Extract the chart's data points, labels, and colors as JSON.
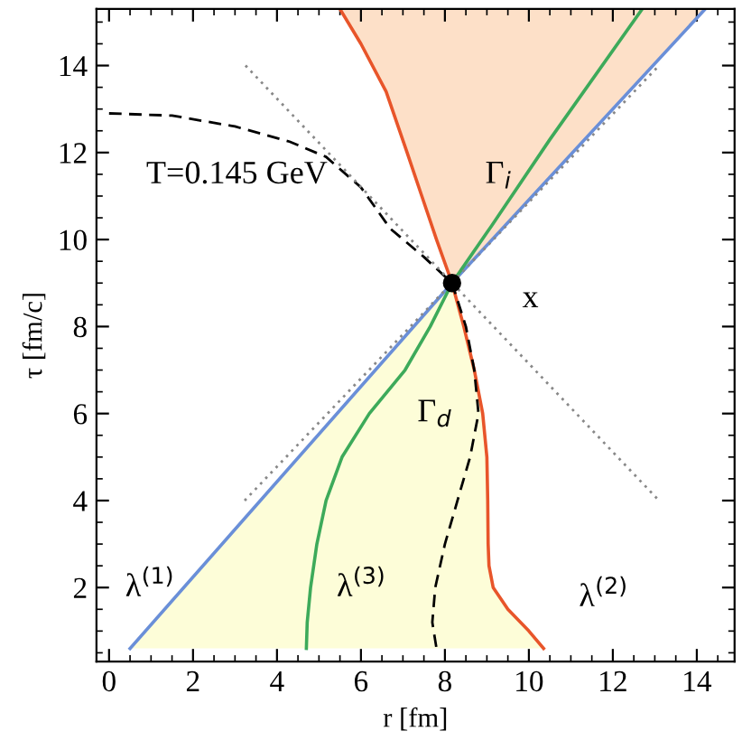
{
  "chart_data": {
    "type": "line",
    "xlabel": "r [fm]",
    "ylabel": "τ [fm/c]",
    "xlim": [
      -0.3,
      14.9
    ],
    "ylim": [
      0.3,
      15.3
    ],
    "xticks": [
      0,
      2,
      4,
      6,
      8,
      10,
      12,
      14
    ],
    "yticks": [
      2,
      4,
      6,
      8,
      10,
      12,
      14
    ],
    "grid": false,
    "legend": false,
    "series": [
      {
        "name": "λ$^{(1)}$",
        "color": "#6a8fd8",
        "x": [
          0.5,
          8.17,
          14.2
        ],
        "values": [
          0.6,
          9,
          15.3
        ]
      },
      {
        "name": "λ$^{(3)}$",
        "color": "#3daa5a",
        "x": [
          4.7,
          4.72,
          4.8,
          4.95,
          5.17,
          5.55,
          6.2,
          7.05,
          7.65,
          8.17,
          9.1,
          10.5,
          12.7
        ],
        "values": [
          0.6,
          1.2,
          2,
          3,
          4,
          5,
          6,
          7,
          8,
          9,
          10.3,
          12.3,
          15.3
        ]
      },
      {
        "name": "λ$^{(2)}$",
        "color": "#e8552a",
        "x": [
          10.35,
          10.0,
          9.5,
          9.15,
          9.05,
          9.03,
          9.02,
          9.0,
          8.9,
          8.7,
          8.45,
          8.17,
          7.8,
          7.45,
          7.1,
          6.6,
          6.0,
          5.5
        ],
        "values": [
          0.6,
          1.0,
          1.5,
          2.0,
          2.5,
          3,
          4,
          5,
          6,
          7,
          8,
          9,
          10,
          11,
          12,
          13.4,
          14.5,
          15.3
        ]
      },
      {
        "color": "#000000",
        "line_style": "dashed",
        "x": [
          0,
          1.5,
          3.0,
          4.3,
          5.17,
          6.0,
          6.7,
          7.5,
          8.17,
          8.5,
          8.7,
          8.8,
          8.6,
          8.3,
          8.0,
          7.77,
          7.7,
          7.8
        ],
        "values": [
          12.9,
          12.85,
          12.6,
          12.25,
          11.9,
          11.2,
          10.25,
          9.6,
          9,
          8,
          7,
          6,
          5,
          4,
          3,
          2,
          1.2,
          0.6
        ]
      },
      {
        "color": "#888888",
        "line_style": "dotted",
        "x": [
          3.25,
          13.1
        ],
        "values": [
          14.0,
          4.0
        ]
      },
      {
        "color": "#888888",
        "line_style": "dotted",
        "x": [
          3.23,
          13.1
        ],
        "values": [
          4.0,
          14.0
        ]
      },
      {
        "type": "scatter",
        "color": "#000000",
        "marker": "circle",
        "x": [
          8.17
        ],
        "values": [
          9
        ]
      }
    ],
    "annotations": [
      "T=0.145 GeV",
      "Γ$_{i}$",
      "Γ$_{d}$",
      "x"
    ]
  }
}
